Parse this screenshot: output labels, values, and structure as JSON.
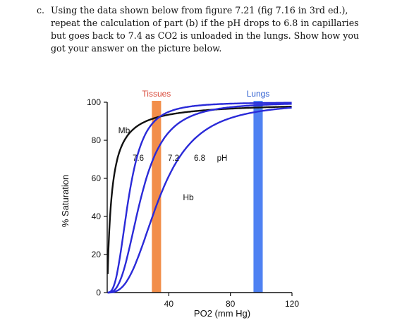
{
  "question": {
    "label": "c.",
    "lines": [
      "Using the data shown below from figure 7.21 (fig 7.16 in 3rd ed.),",
      "repeat the calculation of part (b) if the pH drops to 6.8 in capillaries",
      "but goes back to 7.4 as CO2 is unloaded in the lungs.  Show how you",
      "got your answer on the picture below."
    ]
  },
  "chart_data": {
    "type": "line",
    "title": "",
    "xlabel": "PO2 (mm Hg)",
    "ylabel": "% Saturation",
    "xlim": [
      0,
      120
    ],
    "ylim": [
      0,
      100
    ],
    "x_ticks": [
      40,
      80,
      120
    ],
    "y_ticks": [
      0,
      20,
      40,
      60,
      80,
      100
    ],
    "bands": [
      {
        "label": "Tissues",
        "x": 32,
        "width": 6,
        "color": "#f07a2a",
        "label_color": "#d94a3a"
      },
      {
        "label": "Lungs",
        "x": 98,
        "width": 6,
        "color": "#2f6bf0",
        "label_color": "#2f5fd0"
      }
    ],
    "series": [
      {
        "name": "Mb",
        "color": "#111111",
        "p50": 2.8,
        "n": 1.0
      },
      {
        "name": "7.6",
        "color": "#2a2ad8",
        "p50": 14,
        "n": 2.8
      },
      {
        "name": "7.2",
        "color": "#2a2ad8",
        "p50": 22,
        "n": 2.8
      },
      {
        "name": "6.8",
        "color": "#2a2ad8",
        "p50": 34,
        "n": 2.8
      }
    ],
    "annotations": [
      "Mb",
      "7.6",
      "7.2",
      "6.8",
      "pH",
      "Hb"
    ]
  }
}
